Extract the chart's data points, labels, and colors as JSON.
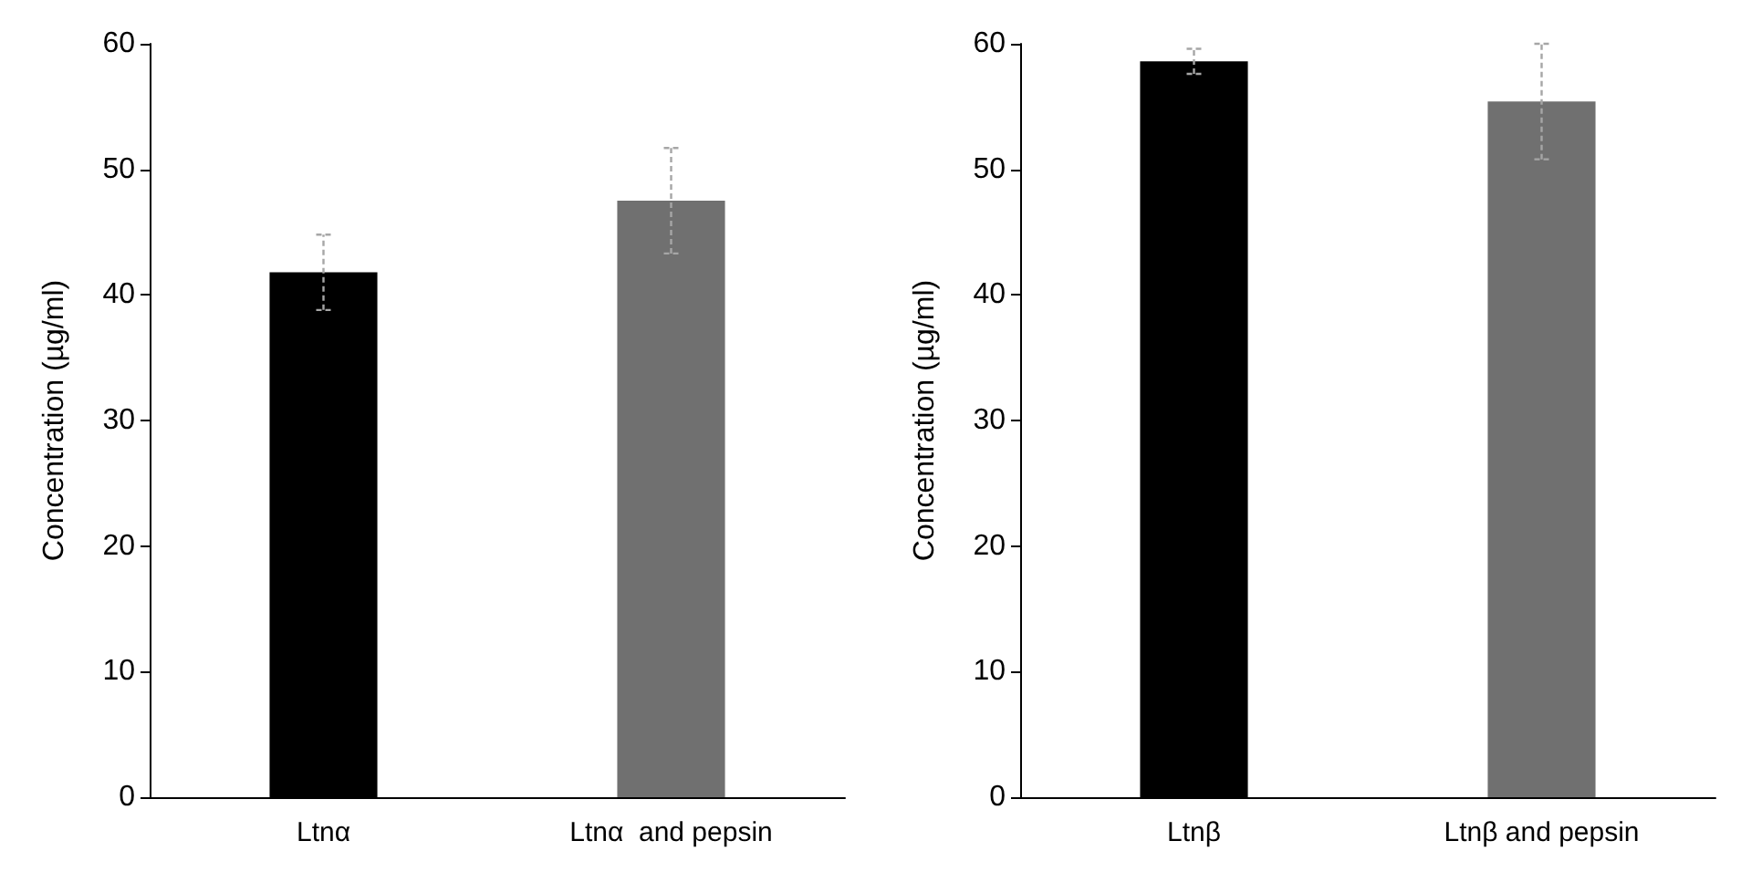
{
  "chart_data": [
    {
      "type": "bar",
      "ylabel": "Concentration (µg/ml)",
      "categories": [
        "Ltnα",
        "Ltnα  and pepsin"
      ],
      "values": [
        41.8,
        47.5
      ],
      "colors": [
        "#000000",
        "#707070"
      ],
      "errors": [
        3.0,
        4.2
      ],
      "ylim": [
        0,
        60
      ],
      "yticks": [
        0,
        10,
        20,
        30,
        40,
        50,
        60
      ],
      "grid": false
    },
    {
      "type": "bar",
      "ylabel": "Concentration (µg/ml)",
      "categories": [
        "Ltnβ",
        "Ltnβ and pepsin"
      ],
      "values": [
        58.6,
        55.4
      ],
      "colors": [
        "#000000",
        "#707070"
      ],
      "errors": [
        1.0,
        4.6
      ],
      "ylim": [
        0,
        60
      ],
      "yticks": [
        0,
        10,
        20,
        30,
        40,
        50,
        60
      ],
      "grid": false
    }
  ]
}
